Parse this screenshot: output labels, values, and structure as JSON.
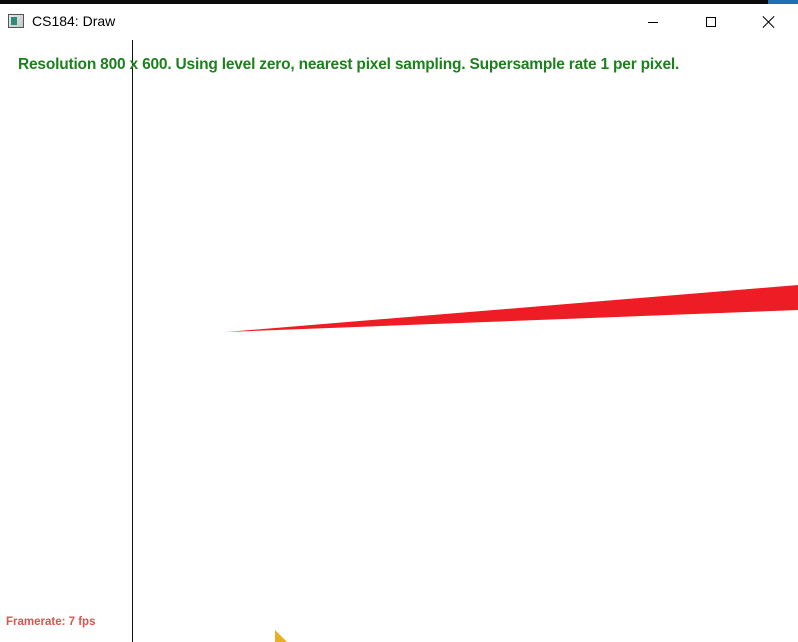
{
  "window": {
    "title": "CS184: Draw",
    "minimize_label": "",
    "maximize_label": "",
    "close_label": ""
  },
  "canvas": {
    "status_text": "Resolution 800 x 600. Using level zero, nearest pixel sampling. Supersample rate 1 per pixel.",
    "framerate_text": "Framerate: 7 fps"
  },
  "colors": {
    "status_text": "#1e7f1e",
    "framerate_text": "#e05050",
    "red_triangle": "#ee1c24",
    "yellow_shape": "#e8b020"
  },
  "icons": {
    "app": "app-window-icon",
    "minimize": "minimize-icon",
    "maximize": "maximize-icon",
    "close": "close-icon"
  }
}
